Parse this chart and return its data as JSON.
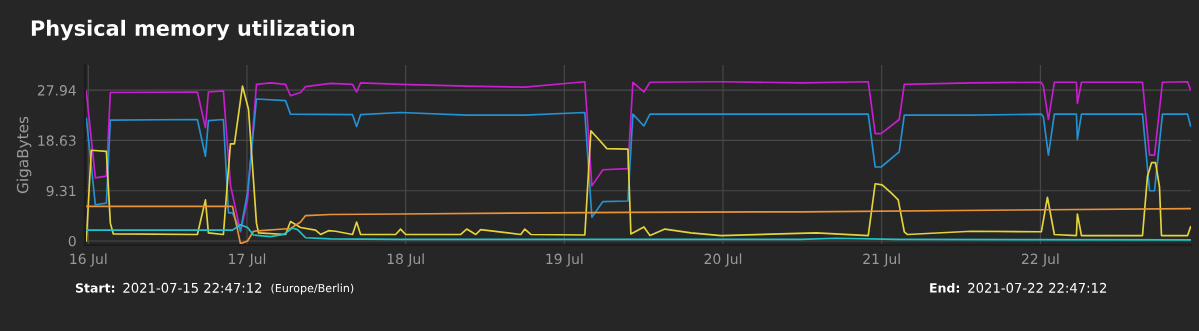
{
  "chart_data": {
    "type": "line",
    "title": "Physical memory utilization",
    "ylabel": "GigaBytes",
    "annotations": [
      "Start:",
      "2021-07-15 22:47:12",
      "(Europe/Berlin)",
      "End:",
      "2021-07-22 22:47:12"
    ],
    "xlim": [
      "2021-07-15T23:30",
      "2021-07-22T22:47"
    ],
    "xticks": [
      {
        "value": "2021-07-16",
        "label": "16 Jul"
      },
      {
        "value": "2021-07-17",
        "label": "17 Jul"
      },
      {
        "value": "2021-07-18",
        "label": "18 Jul"
      },
      {
        "value": "2021-07-19",
        "label": "19 Jul"
      },
      {
        "value": "2021-07-20",
        "label": "20 Jul"
      },
      {
        "value": "2021-07-21",
        "label": "21 Jul"
      },
      {
        "value": "2021-07-22",
        "label": "22 Jul"
      }
    ],
    "ylim": [
      -0.75,
      32.6
    ],
    "yticks": [
      0,
      9.31,
      18.63,
      27.94
    ],
    "grid": true,
    "legend": false,
    "marker": "none",
    "line_style": "solid",
    "series": [
      {
        "color": "#c81ecf",
        "x": [
          "2021-07-15T23:42",
          "2021-07-16T01:04",
          "2021-07-16T02:44",
          "2021-07-16T03:20",
          "2021-07-16T16:30",
          "2021-07-16T17:43",
          "2021-07-16T18:10",
          "2021-07-16T20:26",
          "2021-07-16T21:30",
          "2021-07-16T23:01",
          "2021-07-17T00:05",
          "2021-07-17T01:26",
          "2021-07-17T03:33",
          "2021-07-17T05:50",
          "2021-07-17T06:35",
          "2021-07-17T08:06",
          "2021-07-17T08:52",
          "2021-07-17T12:39",
          "2021-07-17T15:58",
          "2021-07-17T16:35",
          "2021-07-17T17:11",
          "2021-07-17T23:14",
          "2021-07-18T09:14",
          "2021-07-18T18:01",
          "2021-07-19T03:06",
          "2021-07-19T04:10",
          "2021-07-19T05:50",
          "2021-07-19T09:37",
          "2021-07-19T10:22",
          "2021-07-19T12:02",
          "2021-07-19T12:57",
          "2021-07-19T23:42",
          "2021-07-20T11:49",
          "2021-07-20T21:58",
          "2021-07-20T23:01",
          "2021-07-20T23:55",
          "2021-07-21T02:39",
          "2021-07-21T03:25",
          "2021-07-21T13:33",
          "2021-07-22T00:09",
          "2021-07-22T00:27",
          "2021-07-22T01:13",
          "2021-07-22T02:07",
          "2021-07-22T05:27",
          "2021-07-22T05:36",
          "2021-07-22T06:13",
          "2021-07-22T15:27",
          "2021-07-22T16:31",
          "2021-07-22T17:16",
          "2021-07-22T18:28",
          "2021-07-22T22:16",
          "2021-07-22T22:43"
        ],
        "values": [
          27.7,
          11.7,
          12.0,
          27.5,
          27.6,
          21.0,
          27.6,
          27.8,
          10.4,
          1.7,
          7.6,
          29.0,
          29.3,
          29.0,
          26.9,
          27.5,
          28.6,
          29.2,
          29.0,
          27.6,
          29.3,
          29.0,
          28.7,
          28.5,
          29.5,
          10.2,
          13.2,
          13.4,
          29.4,
          27.6,
          29.4,
          29.5,
          29.3,
          29.5,
          19.9,
          19.9,
          22.5,
          29.0,
          29.3,
          29.4,
          28.7,
          22.5,
          29.4,
          29.4,
          25.5,
          29.4,
          29.4,
          15.9,
          15.9,
          29.4,
          29.5,
          28.0
        ]
      },
      {
        "color": "#2391d2",
        "x": [
          "2021-07-15T23:42",
          "2021-07-16T01:04",
          "2021-07-16T02:44",
          "2021-07-16T03:20",
          "2021-07-16T16:30",
          "2021-07-16T17:43",
          "2021-07-16T18:10",
          "2021-07-16T20:26",
          "2021-07-16T21:12",
          "2021-07-16T21:48",
          "2021-07-16T23:01",
          "2021-07-17T00:05",
          "2021-07-17T01:26",
          "2021-07-17T05:50",
          "2021-07-17T06:35",
          "2021-07-17T15:58",
          "2021-07-17T16:35",
          "2021-07-17T17:11",
          "2021-07-17T23:14",
          "2021-07-18T09:14",
          "2021-07-18T18:01",
          "2021-07-19T03:06",
          "2021-07-19T04:10",
          "2021-07-19T05:50",
          "2021-07-19T09:37",
          "2021-07-19T10:22",
          "2021-07-19T12:02",
          "2021-07-19T12:57",
          "2021-07-20T11:49",
          "2021-07-20T21:58",
          "2021-07-20T23:01",
          "2021-07-20T23:55",
          "2021-07-21T02:39",
          "2021-07-21T03:25",
          "2021-07-21T13:33",
          "2021-07-22T00:09",
          "2021-07-22T00:27",
          "2021-07-22T01:13",
          "2021-07-22T02:07",
          "2021-07-22T05:27",
          "2021-07-22T05:36",
          "2021-07-22T06:13",
          "2021-07-22T15:27",
          "2021-07-22T16:31",
          "2021-07-22T17:16",
          "2021-07-22T18:28",
          "2021-07-22T22:16",
          "2021-07-22T22:43"
        ],
        "values": [
          22.7,
          6.7,
          7.0,
          22.4,
          22.5,
          15.7,
          22.3,
          22.5,
          5.2,
          5.2,
          1.9,
          9.0,
          26.3,
          26.0,
          23.5,
          23.4,
          21.2,
          23.4,
          23.8,
          23.3,
          23.3,
          23.8,
          4.4,
          7.3,
          7.4,
          23.5,
          21.3,
          23.5,
          23.5,
          23.5,
          13.7,
          13.7,
          16.5,
          23.3,
          23.3,
          23.5,
          23.0,
          15.9,
          23.5,
          23.5,
          18.8,
          23.5,
          23.5,
          9.3,
          9.3,
          23.5,
          23.5,
          21.3
        ]
      },
      {
        "color": "#e3d43c",
        "x": [
          "2021-07-15T23:42",
          "2021-07-16T00:27",
          "2021-07-16T02:44",
          "2021-07-16T03:20",
          "2021-07-16T03:47",
          "2021-07-16T16:30",
          "2021-07-16T17:43",
          "2021-07-16T18:10",
          "2021-07-16T20:26",
          "2021-07-16T21:30",
          "2021-07-16T22:06",
          "2021-07-16T23:19",
          "2021-07-17T00:14",
          "2021-07-17T01:26",
          "2021-07-17T01:45",
          "2021-07-17T05:50",
          "2021-07-17T06:35",
          "2021-07-17T08:06",
          "2021-07-17T10:22",
          "2021-07-17T11:08",
          "2021-07-17T12:20",
          "2021-07-17T13:24",
          "2021-07-17T15:58",
          "2021-07-17T16:35",
          "2021-07-17T17:11",
          "2021-07-17T22:29",
          "2021-07-17T23:14",
          "2021-07-18T00:00",
          "2021-07-18T08:20",
          "2021-07-18T09:14",
          "2021-07-18T10:36",
          "2021-07-18T11:21",
          "2021-07-18T17:25",
          "2021-07-18T18:01",
          "2021-07-18T18:56",
          "2021-07-19T03:06",
          "2021-07-19T04:01",
          "2021-07-19T05:13",
          "2021-07-19T06:26",
          "2021-07-19T09:37",
          "2021-07-19T10:04",
          "2021-07-19T12:02",
          "2021-07-19T12:57",
          "2021-07-19T15:13",
          "2021-07-19T19:09",
          "2021-07-19T23:42",
          "2021-07-20T14:05",
          "2021-07-20T21:58",
          "2021-07-20T23:01",
          "2021-07-21T00:04",
          "2021-07-21T01:26",
          "2021-07-21T02:30",
          "2021-07-21T03:25",
          "2021-07-21T03:52",
          "2021-07-21T13:33",
          "2021-07-22T00:09",
          "2021-07-22T01:04",
          "2021-07-22T02:07",
          "2021-07-22T05:27",
          "2021-07-22T05:36",
          "2021-07-22T06:13",
          "2021-07-22T15:27",
          "2021-07-22T16:12",
          "2021-07-22T16:49",
          "2021-07-22T17:25",
          "2021-07-22T18:01",
          "2021-07-22T18:19",
          "2021-07-22T22:16",
          "2021-07-22T22:43"
        ],
        "values": [
          0.0,
          16.8,
          16.6,
          3.3,
          1.3,
          1.2,
          7.6,
          1.5,
          1.2,
          18.0,
          18.0,
          28.7,
          24.4,
          3.3,
          1.5,
          1.2,
          3.6,
          2.5,
          2.0,
          1.2,
          1.9,
          1.8,
          1.2,
          3.5,
          1.2,
          1.2,
          2.2,
          1.2,
          1.2,
          2.2,
          1.2,
          2.1,
          1.2,
          2.2,
          1.2,
          1.1,
          20.4,
          18.8,
          17.1,
          17.0,
          1.3,
          2.6,
          1.0,
          2.2,
          1.5,
          1.0,
          1.5,
          1.0,
          10.6,
          10.4,
          8.9,
          7.6,
          1.7,
          1.2,
          1.8,
          1.7,
          8.1,
          1.2,
          1.0,
          5.0,
          1.0,
          1.0,
          12.0,
          14.5,
          14.5,
          10.0,
          1.0,
          1.0,
          2.6
        ]
      },
      {
        "color": "#e8933a",
        "x": [
          "2021-07-15T23:42",
          "2021-07-16T21:48",
          "2021-07-16T23:01",
          "2021-07-17T00:05",
          "2021-07-17T00:59",
          "2021-07-17T06:35",
          "2021-07-17T08:06",
          "2021-07-17T08:52",
          "2021-07-17T12:39",
          "2021-07-17T23:14",
          "2021-07-19T09:37",
          "2021-07-20T11:49",
          "2021-07-22T22:43"
        ],
        "values": [
          6.4,
          6.4,
          -0.5,
          0.0,
          1.8,
          2.3,
          3.5,
          4.7,
          4.9,
          5.0,
          5.3,
          5.4,
          6.0
        ]
      },
      {
        "color": "#1fc6c9",
        "x": [
          "2021-07-15T23:42",
          "2021-07-16T21:48",
          "2021-07-16T23:01",
          "2021-07-17T00:05",
          "2021-07-17T00:59",
          "2021-07-17T03:33",
          "2021-07-17T05:32",
          "2021-07-17T06:53",
          "2021-07-17T07:39",
          "2021-07-17T08:52",
          "2021-07-17T12:39",
          "2021-07-17T23:14",
          "2021-07-20T11:49",
          "2021-07-20T17:07",
          "2021-07-21T02:08",
          "2021-07-22T22:43"
        ],
        "values": [
          2.0,
          2.0,
          3.0,
          2.5,
          1.1,
          0.8,
          1.2,
          2.4,
          2.1,
          0.6,
          0.4,
          0.3,
          0.3,
          0.5,
          0.3,
          0.2
        ]
      }
    ]
  }
}
